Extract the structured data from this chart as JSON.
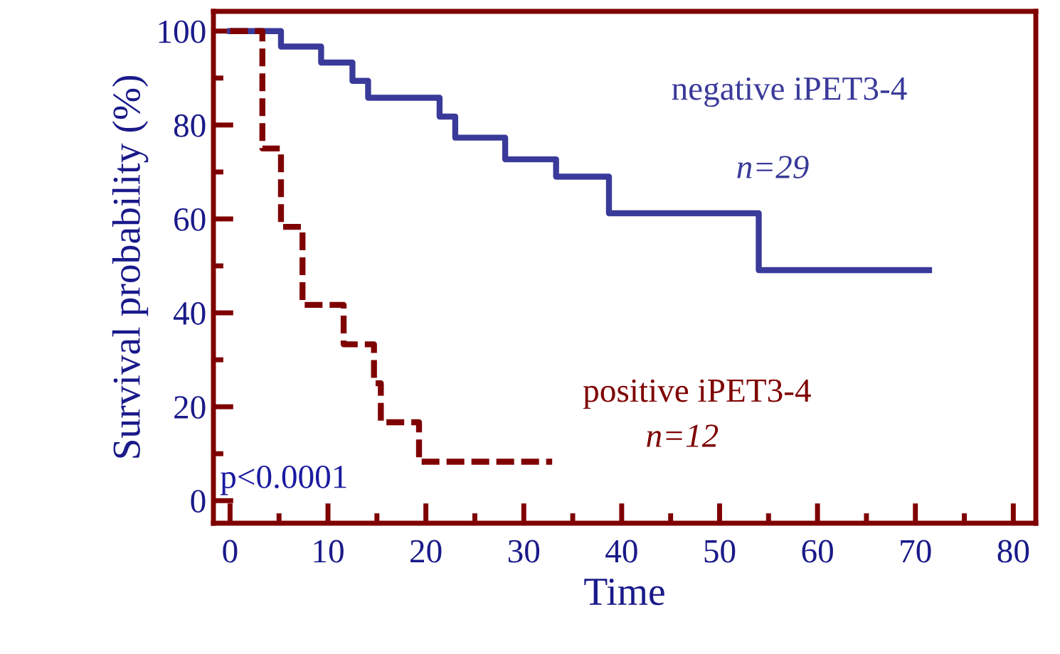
{
  "chart_data": {
    "type": "step",
    "xlabel": "Time",
    "ylabel": "Survival probability (%)",
    "xlim": [
      -1.7,
      82.3
    ],
    "ylim": [
      -4.8,
      104.2
    ],
    "xticks": [
      0,
      10,
      20,
      30,
      40,
      50,
      60,
      70,
      80
    ],
    "yticks": [
      0,
      20,
      40,
      60,
      80,
      100
    ],
    "grid": false,
    "legend": false,
    "series": [
      {
        "name": "negative iPET3-4",
        "color": "#3a3a9a",
        "line_style": "solid",
        "x": [
          0,
          5.2,
          9.3,
          12.5,
          14.1,
          21.4,
          23,
          28.1,
          33.3,
          38.7,
          54,
          71.4
        ],
        "values": [
          100,
          96.7,
          93.3,
          89.4,
          85.8,
          81.8,
          77.3,
          72.7,
          69,
          61.2,
          49.1,
          49.1
        ]
      },
      {
        "name": "positive iPET3-4",
        "color": "#7f0000",
        "line_style": "dashed",
        "x": [
          0,
          3.3,
          5.2,
          7.4,
          11.6,
          14.7,
          15.4,
          19.3,
          32.9
        ],
        "values": [
          100,
          75,
          58.3,
          41.7,
          33.3,
          25,
          16.7,
          8.3,
          8.3
        ]
      }
    ],
    "annotations": [
      "n=29",
      "n=12",
      "p<0.0001"
    ]
  }
}
